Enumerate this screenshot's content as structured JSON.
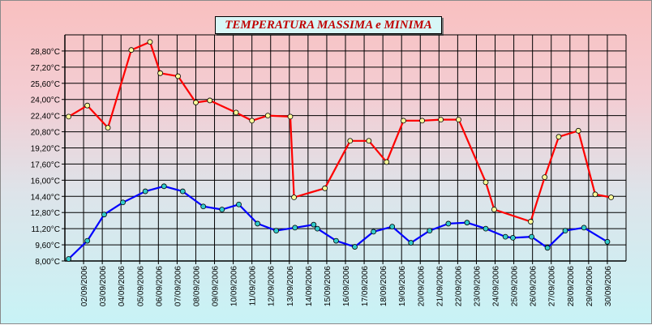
{
  "chart_data": {
    "type": "line",
    "title": "TEMPERATURA MASSIMA e MINIMA",
    "xlabel": "",
    "ylabel": "",
    "ylim": [
      8.0,
      30.4
    ],
    "y_ticks": [
      "8,00°C",
      "9,60°C",
      "11,20°C",
      "12,80°C",
      "14,40°C",
      "16,00°C",
      "17,60°C",
      "19,20°C",
      "20,80°C",
      "22,40°C",
      "24,00°C",
      "25,60°C",
      "27,20°C",
      "28,80°C"
    ],
    "y_tick_values": [
      8.0,
      9.6,
      11.2,
      12.8,
      14.4,
      16.0,
      17.6,
      19.2,
      20.8,
      22.4,
      24.0,
      25.6,
      27.2,
      28.8
    ],
    "categories": [
      "02/09/2006",
      "03/09/2006",
      "04/09/2006",
      "05/09/2006",
      "06/09/2006",
      "07/09/2006",
      "08/09/2006",
      "09/09/2006",
      "10/09/2006",
      "11/09/2006",
      "12/09/2006",
      "13/09/2006",
      "14/09/2006",
      "15/09/2006",
      "16/09/2006",
      "17/09/2006",
      "18/09/2006",
      "19/09/2006",
      "20/09/2006",
      "21/09/2006",
      "22/09/2006",
      "23/09/2006",
      "24/09/2006",
      "25/09/2006",
      "26/09/2006",
      "27/09/2006",
      "28/09/2006",
      "29/09/2006",
      "30/09/2006"
    ],
    "grid": true,
    "series": [
      {
        "color": "#ff0000",
        "marker_color": "#ffff99",
        "points": [
          [
            0.2,
            22.3
          ],
          [
            1.2,
            23.4
          ],
          [
            2.3,
            21.2
          ],
          [
            3.55,
            28.9
          ],
          [
            4.55,
            29.7
          ],
          [
            5.1,
            26.6
          ],
          [
            6.05,
            26.3
          ],
          [
            7.0,
            23.7
          ],
          [
            7.75,
            23.9
          ],
          [
            9.15,
            22.7
          ],
          [
            10.0,
            21.9
          ],
          [
            10.85,
            22.4
          ],
          [
            12.05,
            22.3
          ],
          [
            12.25,
            14.3
          ],
          [
            13.9,
            15.2
          ],
          [
            15.25,
            19.9
          ],
          [
            16.25,
            19.9
          ],
          [
            17.2,
            17.8
          ],
          [
            18.1,
            21.9
          ],
          [
            19.1,
            21.9
          ],
          [
            20.1,
            22.0
          ],
          [
            21.05,
            22.0
          ],
          [
            22.5,
            15.8
          ],
          [
            22.95,
            13.1
          ],
          [
            24.9,
            11.9
          ],
          [
            25.65,
            16.3
          ],
          [
            26.4,
            20.3
          ],
          [
            27.45,
            20.9
          ],
          [
            28.35,
            14.6
          ],
          [
            29.2,
            14.3
          ]
        ]
      },
      {
        "color": "#0000ff",
        "marker_color": "#33cccc",
        "points": [
          [
            0.2,
            8.2
          ],
          [
            1.2,
            10.0
          ],
          [
            2.1,
            12.6
          ],
          [
            3.1,
            13.8
          ],
          [
            4.3,
            14.9
          ],
          [
            5.3,
            15.4
          ],
          [
            6.3,
            14.9
          ],
          [
            7.4,
            13.4
          ],
          [
            8.4,
            13.1
          ],
          [
            9.3,
            13.6
          ],
          [
            10.3,
            11.7
          ],
          [
            11.3,
            11.0
          ],
          [
            12.3,
            11.3
          ],
          [
            13.3,
            11.6
          ],
          [
            13.5,
            11.2
          ],
          [
            14.5,
            10.0
          ],
          [
            15.5,
            9.4
          ],
          [
            16.5,
            10.9
          ],
          [
            17.5,
            11.4
          ],
          [
            18.5,
            9.8
          ],
          [
            19.5,
            11.0
          ],
          [
            20.5,
            11.7
          ],
          [
            21.5,
            11.8
          ],
          [
            22.5,
            11.2
          ],
          [
            23.55,
            10.4
          ],
          [
            23.95,
            10.3
          ],
          [
            24.95,
            10.4
          ],
          [
            25.8,
            9.3
          ],
          [
            26.75,
            11.0
          ],
          [
            27.75,
            11.3
          ],
          [
            29.0,
            9.9
          ]
        ]
      }
    ]
  }
}
